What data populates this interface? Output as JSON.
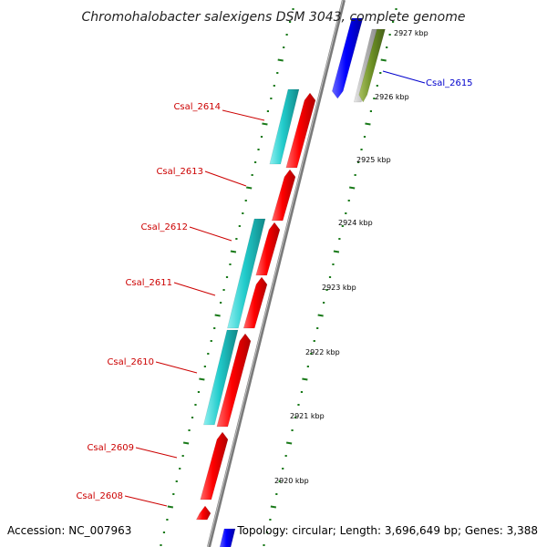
{
  "title": "Chromohalobacter salexigens DSM 3043, complete genome",
  "accession_text": "Accession: NC_007963",
  "summary_text": "Topology: circular; Length: 3,696,649 bp; Genes: 3,388",
  "colors": {
    "reverse_gene": "#ff0000",
    "forward_gene": "#0000ff",
    "cds_cyan": "#22cccc",
    "olive_feature": "#6b8e23",
    "backbone": "#808080",
    "kbp_ticks": "#1a7a1a",
    "reverse_label": "#cc0000",
    "forward_label": "#0000cc"
  },
  "kbp_labels": [
    "2927 kbp",
    "2926 kbp",
    "2925 kbp",
    "2924 kbp",
    "2923 kbp",
    "2922 kbp",
    "2921 kbp",
    "2920 kbp"
  ],
  "gene_labels": [
    {
      "name": "Csal_2615",
      "strand": "forward"
    },
    {
      "name": "Csal_2614",
      "strand": "reverse"
    },
    {
      "name": "Csal_2613",
      "strand": "reverse"
    },
    {
      "name": "Csal_2612",
      "strand": "reverse"
    },
    {
      "name": "Csal_2611",
      "strand": "reverse"
    },
    {
      "name": "Csal_2610",
      "strand": "reverse"
    },
    {
      "name": "Csal_2609",
      "strand": "reverse"
    },
    {
      "name": "Csal_2608",
      "strand": "reverse"
    }
  ]
}
